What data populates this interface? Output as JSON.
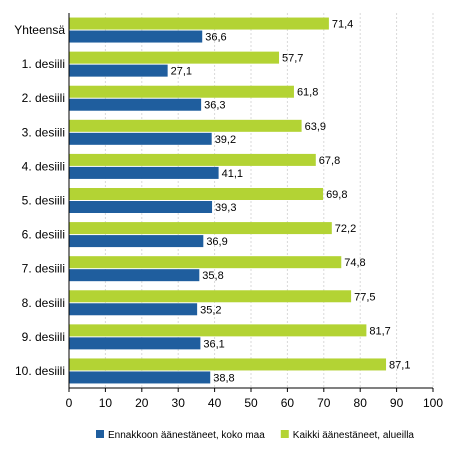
{
  "chart_data": {
    "type": "bar",
    "orientation": "horizontal",
    "categories": [
      "Yhteensä",
      "1. desiili",
      "2. desiili",
      "3. desiili",
      "4. desiili",
      "5. desiili",
      "6. desiili",
      "7. desiili",
      "8. desiili",
      "9. desiili",
      "10. desiili"
    ],
    "series": [
      {
        "name": "Kaikki äänestäneet, alueilla",
        "color": "#b3d334",
        "values": [
          71.4,
          57.7,
          61.8,
          63.9,
          67.8,
          69.8,
          72.2,
          74.8,
          77.5,
          81.7,
          87.1
        ],
        "labels": [
          "71,4",
          "57,7",
          "61,8",
          "63,9",
          "67,8",
          "69,8",
          "72,2",
          "74,8",
          "77,5",
          "81,7",
          "87,1"
        ]
      },
      {
        "name": "Ennakkoon äänestäneet, koko maa",
        "color": "#1f5e9e",
        "values": [
          36.6,
          27.1,
          36.3,
          39.2,
          41.1,
          39.3,
          36.9,
          35.8,
          35.2,
          36.1,
          38.8
        ],
        "labels": [
          "36,6",
          "27,1",
          "36,3",
          "39,2",
          "41,1",
          "39,3",
          "36,9",
          "35,8",
          "35,2",
          "36,1",
          "38,8"
        ]
      }
    ],
    "xlim": [
      0,
      100
    ],
    "xticks": [
      "0",
      "10",
      "20",
      "30",
      "40",
      "50",
      "60",
      "70",
      "80",
      "90",
      "100"
    ],
    "grid": true,
    "legend": {
      "position": "bottom",
      "items": [
        {
          "name": "Ennakkoon äänestäneet, koko maa",
          "color": "#1f5e9e"
        },
        {
          "name": "Kaikki äänestäneet, alueilla",
          "color": "#b3d334"
        }
      ]
    }
  }
}
